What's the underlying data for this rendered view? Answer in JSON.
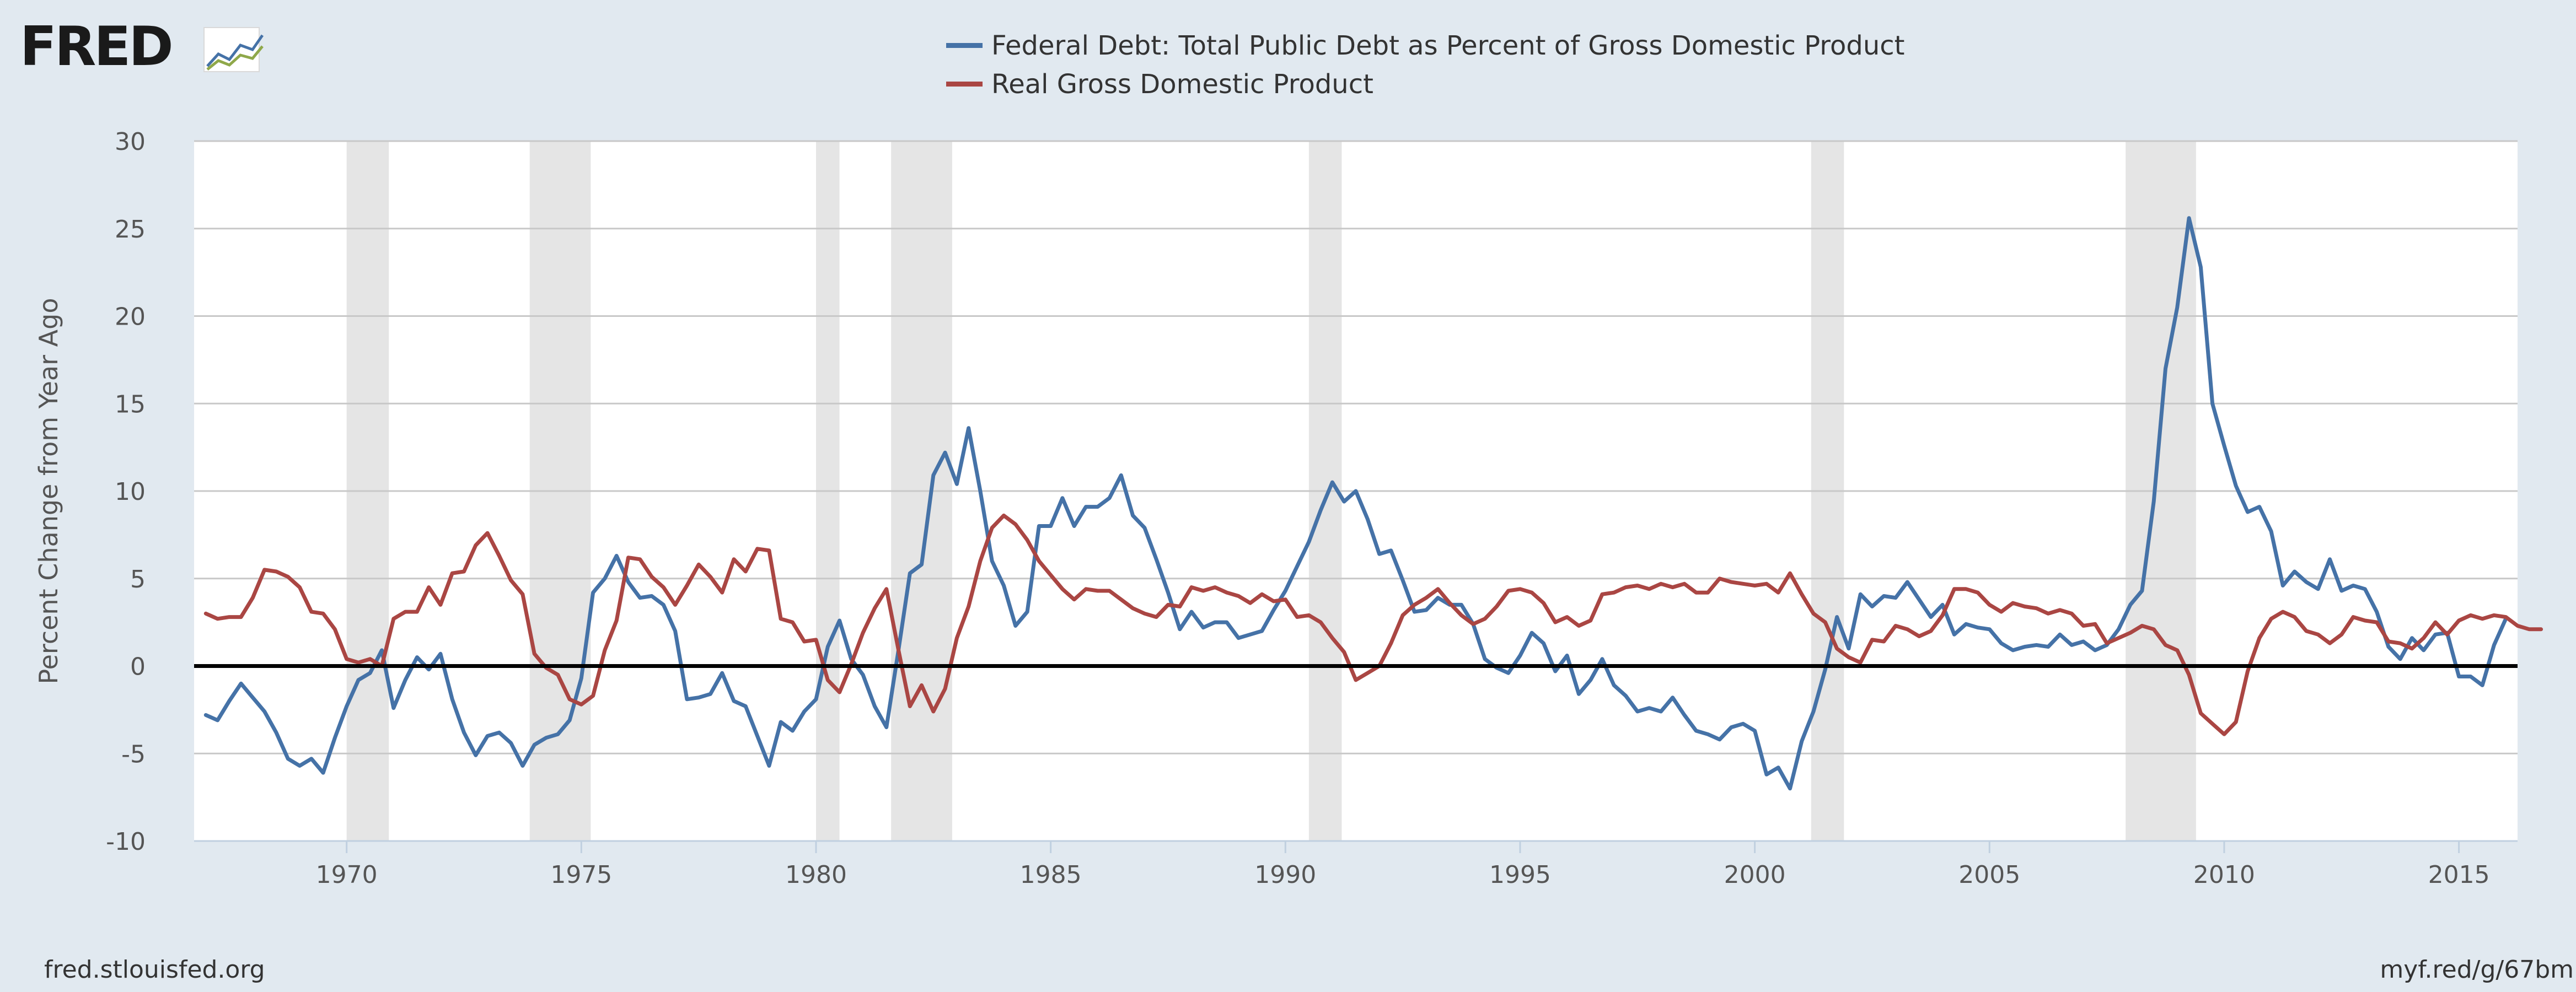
{
  "logo": {
    "text": "FRED",
    "icon": "fred-chart-icon"
  },
  "colors": {
    "series_debt": "#4572a7",
    "series_gdp": "#aa4643",
    "recession": "#e5e5e5",
    "zero_line": "#000000",
    "grid": "#c8c8c8"
  },
  "footer": {
    "source": "fred.stlouisfed.org",
    "short_link": "myf.red/g/67bm"
  },
  "chart_data": {
    "type": "line",
    "title": "",
    "ylabel": "Percent Change from Year Ago",
    "xlabel": "",
    "xlim": [
      1966.75,
      2016.25
    ],
    "ylim": [
      -10,
      30
    ],
    "x_ticks": [
      1970,
      1975,
      1980,
      1985,
      1990,
      1995,
      2000,
      2005,
      2010,
      2015
    ],
    "y_ticks": [
      -10,
      -5,
      0,
      5,
      10,
      15,
      20,
      25,
      30
    ],
    "grid": true,
    "legend_position": "top-center",
    "x_start": 1967.0,
    "x_step": 0.25,
    "recessions": [
      [
        1970.0,
        1970.9
      ],
      [
        1973.9,
        1975.2
      ],
      [
        1980.0,
        1980.5
      ],
      [
        1981.6,
        1982.9
      ],
      [
        1990.5,
        1991.2
      ],
      [
        2001.2,
        2001.9
      ],
      [
        2007.9,
        2009.4
      ]
    ],
    "series": [
      {
        "name": "Federal Debt: Total Public Debt as Percent of Gross Domestic Product",
        "values": [
          -2.8,
          -3.1,
          -2.0,
          -1.0,
          -1.8,
          -2.6,
          -3.8,
          -5.3,
          -5.7,
          -5.3,
          -6.1,
          -4.1,
          -2.3,
          -0.8,
          -0.4,
          0.9,
          -2.4,
          -0.8,
          0.5,
          -0.2,
          0.7,
          -1.9,
          -3.8,
          -5.1,
          -4.0,
          -3.8,
          -4.4,
          -5.7,
          -4.5,
          -4.1,
          -3.9,
          -3.1,
          -0.7,
          4.2,
          5.0,
          6.3,
          4.8,
          3.9,
          4.0,
          3.5,
          2.0,
          -1.9,
          -1.8,
          -1.6,
          -0.4,
          -2.0,
          -2.3,
          -4.0,
          -5.7,
          -3.2,
          -3.7,
          -2.6,
          -1.9,
          1.1,
          2.6,
          0.4,
          -0.5,
          -2.3,
          -3.5,
          0.8,
          5.3,
          5.8,
          10.9,
          12.2,
          10.4,
          13.6,
          10.0,
          6.0,
          4.6,
          2.3,
          3.1,
          8.0,
          8.0,
          9.6,
          8.0,
          9.1,
          9.1,
          9.6,
          10.9,
          8.6,
          7.9,
          6.1,
          4.2,
          2.1,
          3.1,
          2.2,
          2.5,
          2.5,
          1.6,
          1.8,
          2.0,
          3.2,
          4.3,
          5.7,
          7.1,
          8.9,
          10.5,
          9.4,
          10.0,
          8.4,
          6.4,
          6.6,
          4.9,
          3.1,
          3.2,
          3.9,
          3.5,
          3.5,
          2.4,
          0.4,
          -0.1,
          -0.4,
          0.6,
          1.9,
          1.3,
          -0.3,
          0.6,
          -1.6,
          -0.8,
          0.4,
          -1.1,
          -1.7,
          -2.6,
          -2.4,
          -2.6,
          -1.8,
          -2.8,
          -3.7,
          -3.9,
          -4.2,
          -3.5,
          -3.3,
          -3.7,
          -6.2,
          -5.8,
          -7.0,
          -4.3,
          -2.6,
          -0.2,
          2.8,
          1.0,
          4.1,
          3.4,
          4.0,
          3.9,
          4.8,
          3.8,
          2.8,
          3.5,
          1.8,
          2.4,
          2.2,
          2.1,
          1.3,
          0.9,
          1.1,
          1.2,
          1.1,
          1.8,
          1.2,
          1.4,
          0.9,
          1.2,
          2.1,
          3.5,
          4.3,
          9.4,
          17.0,
          20.5,
          25.6,
          22.8,
          15.0,
          12.6,
          10.3,
          8.8,
          9.1,
          7.7,
          4.6,
          5.4,
          4.8,
          4.4,
          6.1,
          4.3,
          4.6,
          4.4,
          3.1,
          1.1,
          0.4,
          1.6,
          0.9,
          1.8,
          1.9,
          -0.6,
          -0.6,
          -1.1,
          1.2,
          2.7
        ]
      },
      {
        "name": "Real Gross Domestic Product",
        "values": [
          3.0,
          2.7,
          2.8,
          2.8,
          3.9,
          5.5,
          5.4,
          5.1,
          4.5,
          3.1,
          3.0,
          2.1,
          0.4,
          0.2,
          0.4,
          0.0,
          2.7,
          3.1,
          3.1,
          4.5,
          3.5,
          5.3,
          5.4,
          6.9,
          7.6,
          6.3,
          4.9,
          4.1,
          0.7,
          -0.1,
          -0.5,
          -1.9,
          -2.2,
          -1.7,
          0.9,
          2.6,
          6.2,
          6.1,
          5.1,
          4.5,
          3.5,
          4.6,
          5.8,
          5.1,
          4.2,
          6.1,
          5.4,
          6.7,
          6.6,
          2.7,
          2.5,
          1.4,
          1.5,
          -0.8,
          -1.5,
          0.1,
          1.9,
          3.3,
          4.4,
          1.0,
          -2.3,
          -1.1,
          -2.6,
          -1.3,
          1.6,
          3.4,
          6.0,
          7.9,
          8.6,
          8.1,
          7.2,
          6.0,
          5.2,
          4.4,
          3.8,
          4.4,
          4.3,
          4.3,
          3.8,
          3.3,
          3.0,
          2.8,
          3.5,
          3.4,
          4.5,
          4.3,
          4.5,
          4.2,
          4.0,
          3.6,
          4.1,
          3.7,
          3.8,
          2.8,
          2.9,
          2.5,
          1.6,
          0.8,
          -0.8,
          -0.4,
          0.0,
          1.3,
          2.9,
          3.5,
          3.9,
          4.4,
          3.6,
          2.9,
          2.4,
          2.7,
          3.4,
          4.3,
          4.4,
          4.2,
          3.6,
          2.5,
          2.8,
          2.3,
          2.6,
          4.1,
          4.2,
          4.5,
          4.6,
          4.4,
          4.7,
          4.5,
          4.7,
          4.2,
          4.2,
          5.0,
          4.8,
          4.7,
          4.6,
          4.7,
          4.2,
          5.3,
          4.1,
          3.0,
          2.5,
          1.0,
          0.5,
          0.2,
          1.5,
          1.4,
          2.3,
          2.1,
          1.7,
          2.0,
          2.9,
          4.4,
          4.4,
          4.2,
          3.5,
          3.1,
          3.6,
          3.4,
          3.3,
          3.0,
          3.2,
          3.0,
          2.3,
          2.4,
          1.3,
          1.6,
          1.9,
          2.3,
          2.1,
          1.2,
          0.9,
          -0.5,
          -2.7,
          -3.3,
          -3.9,
          -3.2,
          -0.3,
          1.6,
          2.7,
          3.1,
          2.8,
          2.0,
          1.8,
          1.3,
          1.8,
          2.8,
          2.6,
          2.5,
          1.4,
          1.3,
          1.0,
          1.6,
          2.5,
          1.8,
          2.6,
          2.9,
          2.7,
          2.9,
          2.8,
          2.3,
          2.1,
          2.1
        ]
      }
    ]
  }
}
